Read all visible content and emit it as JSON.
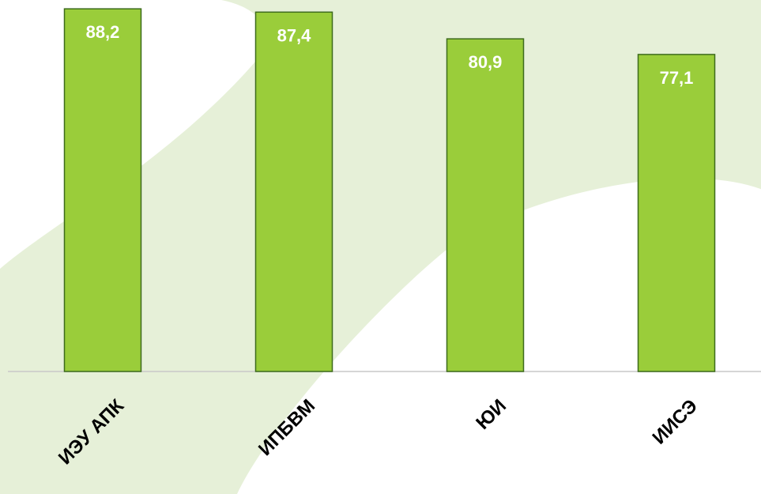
{
  "chart_data": {
    "type": "bar",
    "categories": [
      "ИЭУ АПК",
      "ИПБВМ",
      "ЮИ",
      "ИИСЭ"
    ],
    "values": [
      88.2,
      87.4,
      80.9,
      77.1
    ],
    "value_labels": [
      "88,2",
      "87,4",
      "80,9",
      "77,1"
    ],
    "title": "",
    "xlabel": "",
    "ylabel": "",
    "ylim": [
      0,
      89
    ],
    "grid": false,
    "legend": "none",
    "colors": {
      "bar_fill": "#9ACD3A",
      "bar_stroke": "#3d6b1c",
      "background_shape": "#E6F0D8",
      "baseline": "#c8c8c8",
      "value_text": "#ffffff",
      "category_text": "#000000"
    }
  }
}
